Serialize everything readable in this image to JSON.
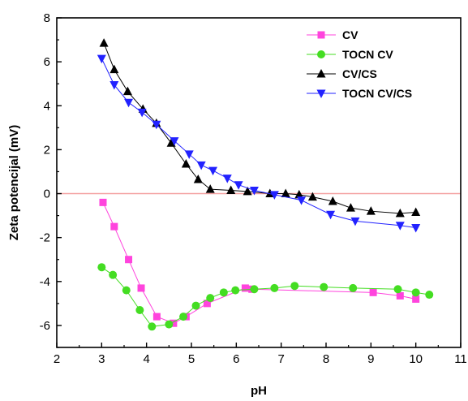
{
  "chart_data": {
    "type": "line",
    "title": "",
    "xlabel": "pH",
    "ylabel": "Zeta potencijal (mV)",
    "xlim": [
      2,
      11
    ],
    "ylim": [
      -7,
      8
    ],
    "xticks": [
      2,
      3,
      4,
      5,
      6,
      7,
      8,
      9,
      10,
      11
    ],
    "yticks": [
      -6,
      -4,
      -2,
      0,
      2,
      4,
      6,
      8
    ],
    "grid": false,
    "legend_position": "top-right",
    "reference_line": {
      "y": 0,
      "color": "#f4a0a0"
    },
    "series": [
      {
        "name": "CV",
        "color": "#ff44dd",
        "marker": "square",
        "x": [
          3.03,
          3.28,
          3.6,
          3.88,
          4.23,
          4.6,
          4.88,
          5.35,
          6.2,
          6.35,
          9.05,
          9.65,
          10.0
        ],
        "y": [
          -0.4,
          -1.5,
          -3.0,
          -4.3,
          -5.6,
          -5.9,
          -5.6,
          -5.0,
          -4.3,
          -4.35,
          -4.5,
          -4.65,
          -4.8
        ]
      },
      {
        "name": "TOCN CV",
        "color": "#44dd22",
        "marker": "circle",
        "x": [
          3.0,
          3.25,
          3.55,
          3.85,
          4.12,
          4.5,
          4.82,
          5.1,
          5.42,
          5.72,
          5.98,
          6.4,
          6.85,
          7.3,
          7.95,
          8.6,
          9.6,
          10.0,
          10.3
        ],
        "y": [
          -3.35,
          -3.7,
          -4.4,
          -5.3,
          -6.05,
          -5.95,
          -5.6,
          -5.1,
          -4.75,
          -4.5,
          -4.4,
          -4.35,
          -4.3,
          -4.2,
          -4.25,
          -4.3,
          -4.35,
          -4.5,
          -4.6
        ]
      },
      {
        "name": "CV/CS",
        "color": "#000000",
        "marker": "triangle-up",
        "x": [
          3.05,
          3.28,
          3.58,
          3.92,
          4.22,
          4.55,
          4.88,
          5.15,
          5.42,
          5.88,
          6.25,
          6.75,
          7.1,
          7.4,
          7.7,
          8.15,
          8.55,
          9.0,
          9.65,
          10.0
        ],
        "y": [
          6.85,
          5.65,
          4.65,
          3.85,
          3.2,
          2.3,
          1.35,
          0.65,
          0.2,
          0.15,
          0.1,
          0.0,
          0.0,
          -0.05,
          -0.15,
          -0.35,
          -0.65,
          -0.8,
          -0.9,
          -0.85
        ]
      },
      {
        "name": "TOCN CV/CS",
        "color": "#2222ff",
        "marker": "triangle-down",
        "x": [
          3.0,
          3.28,
          3.6,
          3.9,
          4.22,
          4.62,
          4.95,
          5.22,
          5.48,
          5.8,
          6.05,
          6.4,
          6.85,
          7.45,
          8.1,
          8.65,
          9.65,
          10.0
        ],
        "y": [
          6.15,
          4.95,
          4.15,
          3.7,
          3.15,
          2.4,
          1.8,
          1.3,
          1.05,
          0.7,
          0.4,
          0.15,
          -0.05,
          -0.3,
          -0.95,
          -1.25,
          -1.45,
          -1.55
        ]
      }
    ]
  }
}
